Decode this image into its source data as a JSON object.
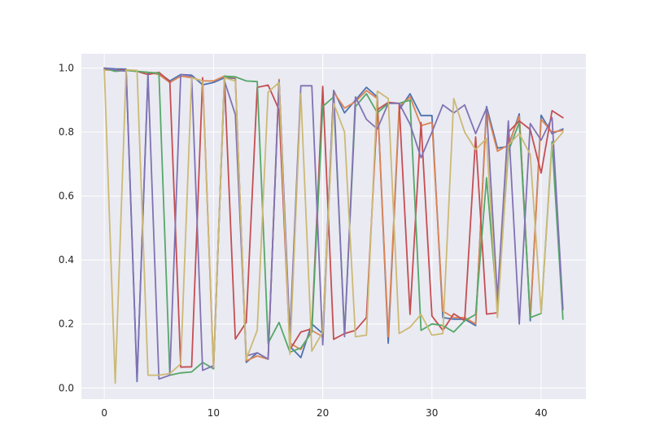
{
  "chart_data": {
    "type": "line",
    "title": "",
    "xlabel": "",
    "ylabel": "",
    "xlim": [
      -2.1,
      44.1
    ],
    "ylim": [
      -0.035,
      1.045
    ],
    "x_ticks": [
      0,
      10,
      20,
      30,
      40
    ],
    "y_ticks": [
      0.0,
      0.2,
      0.4,
      0.6,
      0.8,
      1.0
    ],
    "x_tick_labels": [
      "0",
      "10",
      "20",
      "30",
      "40"
    ],
    "y_tick_labels": [
      "0.0",
      "0.2",
      "0.4",
      "0.6",
      "0.8",
      "1.0"
    ],
    "grid": true,
    "background": "#eaeaf2",
    "grid_color": "#ffffff",
    "x": [
      0,
      1,
      2,
      3,
      4,
      5,
      6,
      7,
      8,
      9,
      10,
      11,
      12,
      13,
      14,
      15,
      16,
      17,
      18,
      19,
      20,
      21,
      22,
      23,
      24,
      25,
      26,
      27,
      28,
      29,
      30,
      31,
      32,
      33,
      34,
      35,
      36,
      37,
      38,
      39,
      40,
      41,
      42
    ],
    "series": [
      {
        "color": "#4c72b0",
        "values": [
          1.0,
          0.998,
          0.997,
          0.02,
          0.985,
          0.985,
          0.96,
          0.98,
          0.978,
          0.948,
          0.955,
          0.97,
          0.968,
          0.08,
          0.11,
          0.09,
          0.963,
          0.13,
          0.095,
          0.2,
          0.17,
          0.93,
          0.86,
          0.9,
          0.94,
          0.91,
          0.14,
          0.87,
          0.92,
          0.852,
          0.852,
          0.22,
          0.215,
          0.215,
          0.195,
          0.88,
          0.75,
          0.755,
          0.857,
          0.21,
          0.853,
          0.795,
          0.81
        ]
      },
      {
        "color": "#dd8452",
        "values": [
          0.995,
          0.993,
          0.993,
          0.99,
          0.987,
          0.98,
          0.955,
          0.975,
          0.97,
          0.96,
          0.96,
          0.975,
          0.97,
          0.085,
          0.1,
          0.09,
          0.965,
          0.14,
          0.12,
          0.18,
          0.16,
          0.925,
          0.875,
          0.895,
          0.93,
          0.905,
          0.16,
          0.88,
          0.91,
          0.82,
          0.83,
          0.24,
          0.22,
          0.22,
          0.2,
          0.87,
          0.74,
          0.76,
          0.85,
          0.22,
          0.84,
          0.8,
          0.805
        ]
      },
      {
        "color": "#c44e52",
        "values": [
          0.998,
          0.995,
          0.994,
          0.99,
          0.98,
          0.987,
          0.958,
          0.065,
          0.066,
          0.97,
          0.06,
          0.968,
          0.153,
          0.205,
          0.94,
          0.947,
          0.87,
          0.12,
          0.175,
          0.185,
          0.943,
          0.152,
          0.17,
          0.18,
          0.22,
          0.87,
          0.893,
          0.89,
          0.23,
          0.83,
          0.225,
          0.18,
          0.232,
          0.21,
          0.785,
          0.231,
          0.235,
          0.8,
          0.835,
          0.808,
          0.672,
          0.867,
          0.845
        ]
      },
      {
        "color": "#55a868",
        "values": [
          1.0,
          0.99,
          0.993,
          0.99,
          0.987,
          0.985,
          0.04,
          0.047,
          0.05,
          0.08,
          0.06,
          0.975,
          0.973,
          0.96,
          0.958,
          0.14,
          0.205,
          0.112,
          0.125,
          0.175,
          0.88,
          0.91,
          0.17,
          0.88,
          0.92,
          0.86,
          0.89,
          0.89,
          0.9,
          0.18,
          0.2,
          0.195,
          0.175,
          0.21,
          0.23,
          0.657,
          0.25,
          0.74,
          0.83,
          0.22,
          0.233,
          0.77,
          0.215
        ]
      },
      {
        "color": "#8172b3",
        "values": [
          1.0,
          0.995,
          0.99,
          0.025,
          0.98,
          0.028,
          0.04,
          0.98,
          0.975,
          0.055,
          0.07,
          0.96,
          0.855,
          0.1,
          0.11,
          0.09,
          0.96,
          0.165,
          0.945,
          0.945,
          0.135,
          0.93,
          0.16,
          0.91,
          0.84,
          0.81,
          0.89,
          0.89,
          0.825,
          0.72,
          0.8,
          0.885,
          0.86,
          0.885,
          0.795,
          0.875,
          0.28,
          0.835,
          0.2,
          0.827,
          0.775,
          0.845,
          0.245
        ]
      },
      {
        "color": "#ccb974",
        "values": [
          0.995,
          0.015,
          0.995,
          0.993,
          0.04,
          0.04,
          0.045,
          0.075,
          0.97,
          0.96,
          0.065,
          0.97,
          0.96,
          0.09,
          0.18,
          0.925,
          0.955,
          0.105,
          0.92,
          0.115,
          0.175,
          0.89,
          0.8,
          0.16,
          0.165,
          0.928,
          0.905,
          0.17,
          0.19,
          0.23,
          0.165,
          0.17,
          0.905,
          0.8,
          0.745,
          0.78,
          0.22,
          0.76,
          0.795,
          0.73,
          0.235,
          0.76,
          0.8
        ]
      }
    ]
  }
}
